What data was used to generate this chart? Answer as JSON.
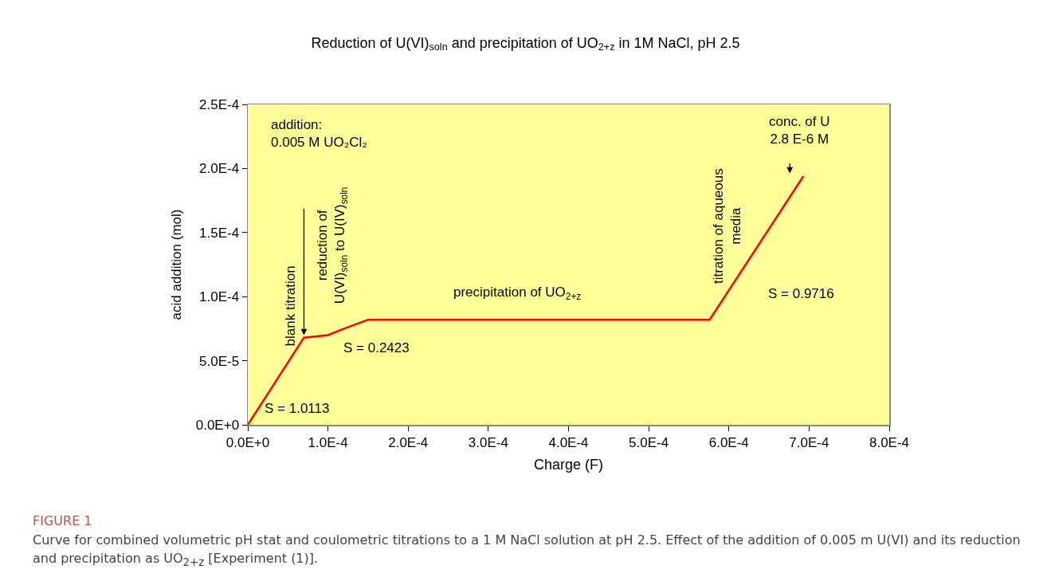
{
  "chart_data": {
    "type": "line",
    "title": "Reduction of U(VI)$_{soln}$ and precipitation of UO$_{2+z}$ in 1M NaCl, pH 2.5",
    "xlabel": "Charge (F)",
    "ylabel": "acid addition (mol)",
    "x": [
      0,
      7e-05,
      0.0001,
      0.00012,
      0.00015,
      0.000576,
      0.000693
    ],
    "series": [
      {
        "color": "#ff0000",
        "values": [
          0,
          6.8e-05,
          7e-05,
          7.5e-05,
          8.2e-05,
          8.2e-05,
          0.000194
        ]
      }
    ],
    "xlim": [
      0,
      0.0008
    ],
    "ylim": [
      0,
      0.00025
    ],
    "xticks": [
      {
        "value": 0,
        "label": "0.0E+0"
      },
      {
        "value": 0.0001,
        "label": "1.0E-4"
      },
      {
        "value": 0.0002,
        "label": "2.0E-4"
      },
      {
        "value": 0.0003,
        "label": "3.0E-4"
      },
      {
        "value": 0.0004,
        "label": "4.0E-4"
      },
      {
        "value": 0.0005,
        "label": "5.0E-4"
      },
      {
        "value": 0.0006,
        "label": "6.0E-4"
      },
      {
        "value": 0.0007,
        "label": "7.0E-4"
      },
      {
        "value": 0.0008,
        "label": "8.0E-4"
      }
    ],
    "yticks": [
      {
        "value": 0,
        "label": "0.0E+0"
      },
      {
        "value": 5e-05,
        "label": "5.0E-5"
      },
      {
        "value": 0.0001,
        "label": "1.0E-4"
      },
      {
        "value": 0.00015,
        "label": "1.5E-4"
      },
      {
        "value": 0.0002,
        "label": "2.0E-4"
      },
      {
        "value": 0.00025,
        "label": "2.5E-4"
      }
    ],
    "grid": false,
    "marker": "none",
    "line_style": "solid",
    "annotations": [
      "addition:\n0.005 M UO₂Cl₂",
      "blank titration",
      {
        "text": "reduction of\nU(VI)$_{soln}$ to U(IV)$_{soln}$",
        "x": 7e-05,
        "y": 7e-05
      },
      "S = 1.0113",
      "S = 0.2423",
      "precipitation of UO$_{2+z}$",
      "titration of aqueous\nmedia",
      "S = 0.9716",
      "conc. of U\n2.8 E-6 M",
      "FIGURE 1",
      "Curve for combined volumetric pH stat and coulometric titrations to a 1 M NaCl solution at pH 2.5. Effect of the addition of 0.005 m U(VI) and its reduction and precipitation as UO$_{2+z}$ [Experiment (1)]."
    ]
  }
}
